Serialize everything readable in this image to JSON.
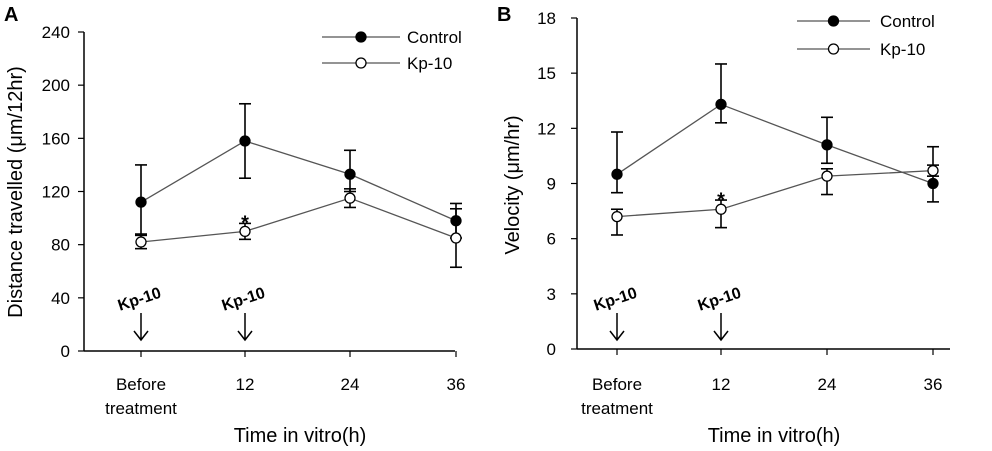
{
  "chart_data": [
    {
      "panel": "A",
      "type": "line",
      "categories": [
        "Before treatment",
        "12",
        "24",
        "36"
      ],
      "x_label_lines": [
        [
          "Before",
          "treatment"
        ],
        [
          "12"
        ],
        [
          "24"
        ],
        [
          "36"
        ]
      ],
      "xlabel": "Time in vitro(h)",
      "ylabel": "Distance travelled (μm/12hr)",
      "ylim": [
        0,
        240
      ],
      "yticks": [
        0,
        40,
        80,
        120,
        160,
        200,
        240
      ],
      "legend_position": "top-right",
      "series": [
        {
          "name": "Control",
          "marker": "filled",
          "values": [
            112,
            158,
            133,
            98
          ],
          "err_up": [
            28,
            28,
            18,
            13
          ],
          "err_down": [
            24,
            28,
            13,
            13
          ]
        },
        {
          "name": "Kp-10",
          "marker": "open",
          "values": [
            82,
            90,
            115,
            85
          ],
          "err_up": [
            5,
            6,
            7,
            22
          ],
          "err_down": [
            5,
            6,
            7,
            22
          ]
        }
      ],
      "annotations": [
        {
          "type": "arrow",
          "text": "Kp-10",
          "category_index": 0
        },
        {
          "type": "arrow",
          "text": "Kp-10",
          "category_index": 1
        },
        {
          "type": "significance",
          "text": "*",
          "category_index": 1,
          "y": 102
        }
      ]
    },
    {
      "panel": "B",
      "type": "line",
      "categories": [
        "Before treatment",
        "12",
        "24",
        "36"
      ],
      "x_label_lines": [
        [
          "Before",
          "treatment"
        ],
        [
          "12"
        ],
        [
          "24"
        ],
        [
          "36"
        ]
      ],
      "xlabel": "Time in vitro(h)",
      "ylabel": "Velocity (μm/hr)",
      "ylim": [
        0,
        18
      ],
      "yticks": [
        0,
        3,
        6,
        9,
        12,
        15,
        18
      ],
      "legend_position": "top-right",
      "series": [
        {
          "name": "Control",
          "marker": "filled",
          "values": [
            9.5,
            13.3,
            11.1,
            9.0
          ],
          "err_up": [
            2.3,
            2.2,
            1.5,
            2.0
          ],
          "err_down": [
            1.0,
            1.0,
            1.0,
            1.0
          ]
        },
        {
          "name": "Kp-10",
          "marker": "open",
          "values": [
            7.2,
            7.6,
            9.4,
            9.7
          ],
          "err_up": [
            0.4,
            0.5,
            0.4,
            0.3
          ],
          "err_down": [
            1.0,
            1.0,
            1.0,
            0.3
          ]
        }
      ],
      "annotations": [
        {
          "type": "arrow",
          "text": "Kp-10",
          "category_index": 0
        },
        {
          "type": "arrow",
          "text": "Kp-10",
          "category_index": 1
        },
        {
          "type": "significance",
          "text": "*",
          "category_index": 1,
          "y": 8.5
        }
      ]
    }
  ]
}
